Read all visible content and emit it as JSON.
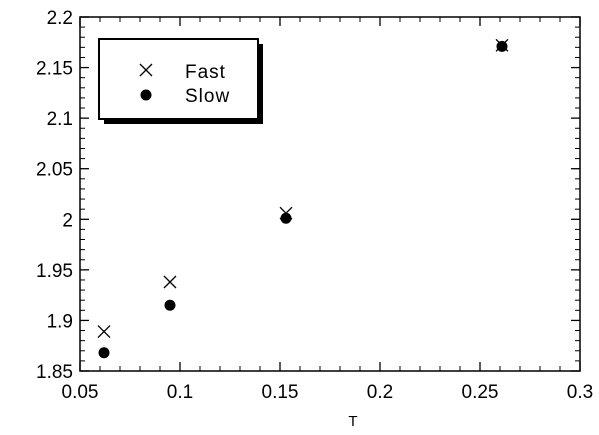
{
  "chart_data": {
    "type": "scatter",
    "title": "",
    "xlabel": "T",
    "ylabel": "",
    "xlim": [
      0.05,
      0.3
    ],
    "ylim": [
      1.85,
      2.2
    ],
    "x_ticks": [
      "0.05",
      "0.1",
      "0.15",
      "0.2",
      "0.25",
      "0.3"
    ],
    "y_ticks": [
      "1.85",
      "1.9",
      "1.95",
      "2",
      "2.05",
      "2.1",
      "2.15",
      "2.2"
    ],
    "grid": false,
    "legend_position": "top-left",
    "series": [
      {
        "name": "Fast",
        "marker": "x",
        "points": [
          {
            "x": 0.062,
            "y": 1.889
          },
          {
            "x": 0.095,
            "y": 1.938
          },
          {
            "x": 0.153,
            "y": 2.006
          },
          {
            "x": 0.261,
            "y": 2.172
          }
        ]
      },
      {
        "name": "Slow",
        "marker": "filled-circle",
        "points": [
          {
            "x": 0.062,
            "y": 1.868
          },
          {
            "x": 0.095,
            "y": 1.915
          },
          {
            "x": 0.153,
            "y": 2.001
          },
          {
            "x": 0.261,
            "y": 2.171
          }
        ]
      }
    ]
  }
}
